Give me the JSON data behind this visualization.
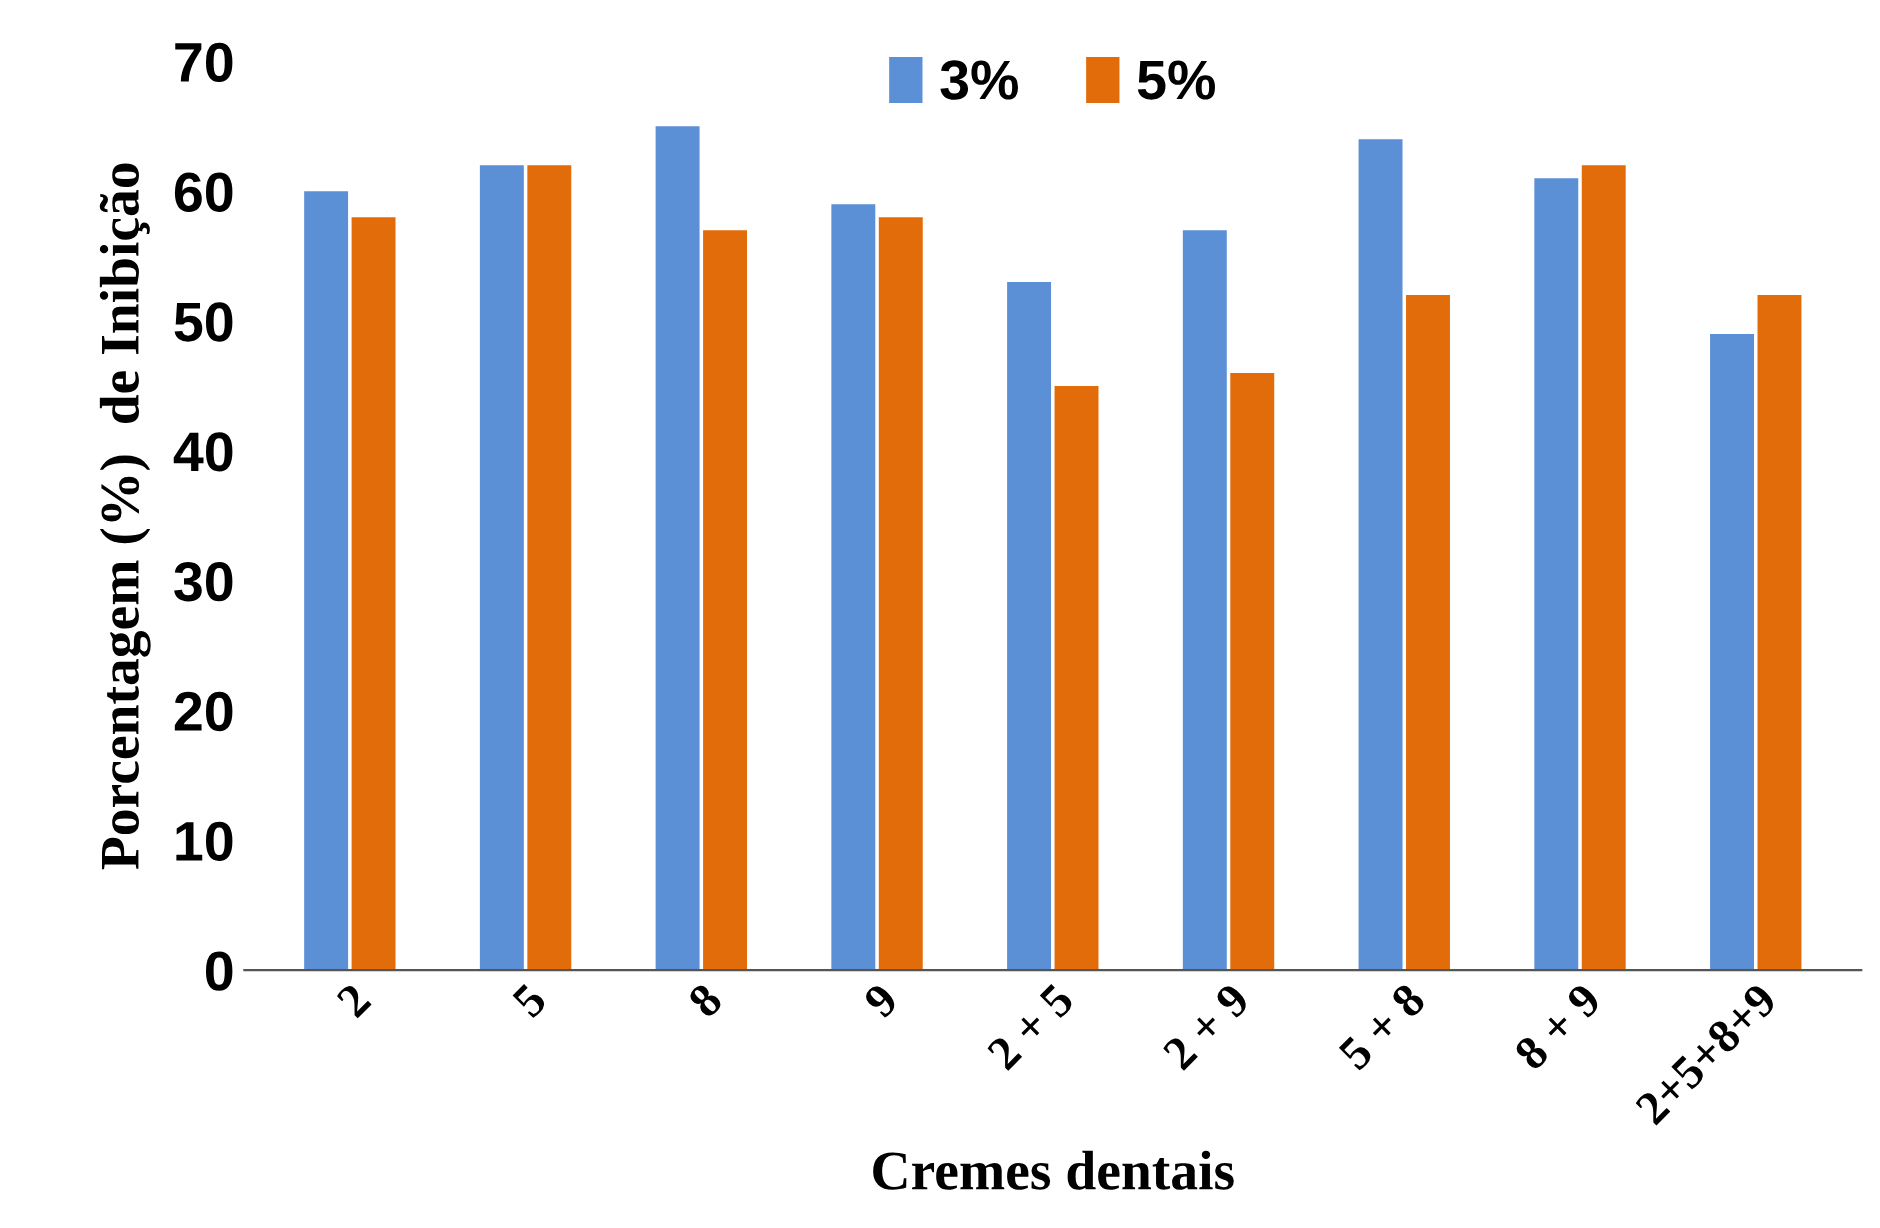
{
  "chart_data": {
    "type": "bar",
    "xlabel": "Cremes dentais",
    "ylabel": "Porcentagem (%)  de Inibição",
    "categories": [
      "2",
      "5",
      "8",
      "9",
      "2 + 5",
      "2 + 9",
      "5 + 8",
      "8 + 9",
      "2+5+8+9"
    ],
    "series": [
      {
        "name": "3%",
        "color": "#5b8fd6",
        "values": [
          60,
          62,
          65,
          59,
          53,
          57,
          64,
          61,
          49
        ]
      },
      {
        "name": "5%",
        "color": "#e36c0a",
        "values": [
          58,
          62,
          57,
          58,
          45,
          46,
          52,
          62,
          52
        ]
      }
    ],
    "ylim": [
      0,
      70
    ],
    "yticks": [
      0,
      10,
      20,
      30,
      40,
      50,
      60,
      70
    ],
    "grid": false,
    "legend": "top"
  }
}
